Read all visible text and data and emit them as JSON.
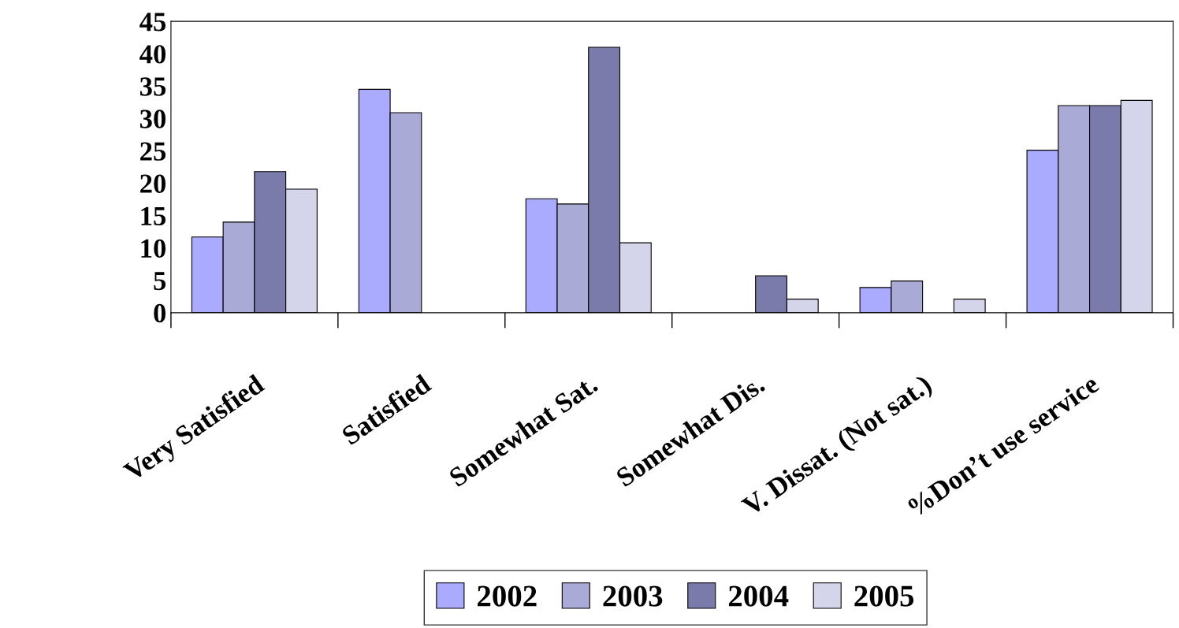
{
  "chart_data": {
    "type": "bar",
    "categories": [
      "Very Satisfied",
      "Satisfied",
      "Somewhat Sat.",
      "Somewhat Dis.",
      "V. Dissat. (Not sat.)",
      "%Don’t use service"
    ],
    "series": [
      {
        "name": "2002",
        "color": "#aaaaff",
        "values": [
          11.7,
          34.5,
          17.6,
          null,
          3.9,
          25.1
        ]
      },
      {
        "name": "2003",
        "color": "#aaaad6",
        "values": [
          14.0,
          30.9,
          16.8,
          null,
          4.9,
          32.0
        ]
      },
      {
        "name": "2004",
        "color": "#7b7bab",
        "values": [
          21.8,
          null,
          41.0,
          5.7,
          null,
          32.0
        ]
      },
      {
        "name": "2005",
        "color": "#d4d4ea",
        "values": [
          19.1,
          null,
          10.8,
          2.1,
          2.1,
          32.8
        ]
      }
    ],
    "ylim": [
      0,
      45
    ],
    "yticks": [
      0,
      5,
      10,
      15,
      20,
      25,
      30,
      35,
      40,
      45
    ],
    "grid": false,
    "legend": "bottom"
  }
}
